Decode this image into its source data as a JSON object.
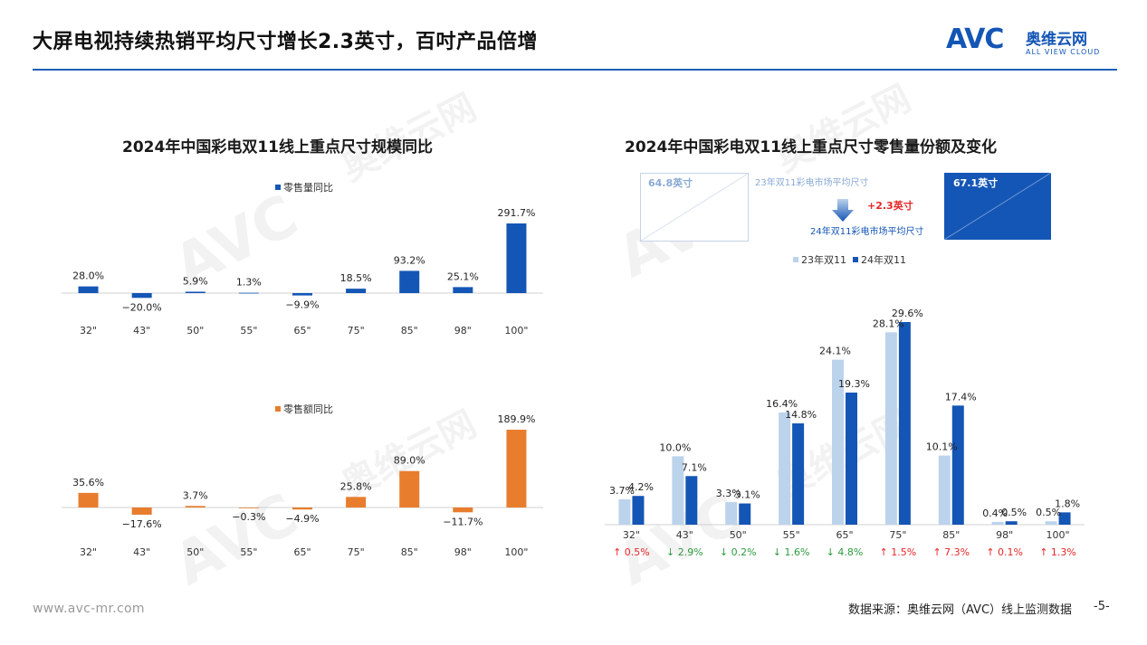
{
  "page": {
    "title": "大屏电视持续热销平均尺寸增长2.3英寸，百吋产品倍增",
    "logo_mark": "AVC",
    "logo_cn": "奥维云网",
    "logo_en": "ALL VIEW CLOUD",
    "footer_url": "www.avc-mr.com",
    "footer_source": "数据来源：奥维云网（AVC）线上监测数据",
    "page_number": "-5-",
    "watermark_cn": "奥维云网",
    "watermark_en": "ALL VIEW CLOUD",
    "watermark_mark": "AVC"
  },
  "colors": {
    "blue": "#1456b5",
    "light_blue": "#bcd3ec",
    "orange": "#e87d2e",
    "up_red": "#e52727",
    "down_green": "#2e9a3e",
    "brand": "#1f5fb8"
  },
  "chart_data": [
    {
      "id": "volume-yoy",
      "type": "bar",
      "title": "2024年中国彩电双11线上重点尺寸规模同比",
      "categories": [
        "32\"",
        "43\"",
        "50\"",
        "55\"",
        "65\"",
        "75\"",
        "85\"",
        "98\"",
        "100\""
      ],
      "series": [
        {
          "name": "零售量同比",
          "values": [
            28.0,
            -20.0,
            5.9,
            1.3,
            -9.9,
            18.5,
            93.2,
            25.1,
            291.7
          ],
          "labels": [
            "28.0%",
            "−20.0%",
            "5.9%",
            "1.3%",
            "−9.9%",
            "18.5%",
            "93.2%",
            "25.1%",
            "291.7%"
          ]
        }
      ],
      "legend_position": "top",
      "grid": false
    },
    {
      "id": "revenue-yoy",
      "type": "bar",
      "title": "",
      "categories": [
        "32\"",
        "43\"",
        "50\"",
        "55\"",
        "65\"",
        "75\"",
        "85\"",
        "98\"",
        "100\""
      ],
      "series": [
        {
          "name": "零售额同比",
          "values": [
            35.6,
            -17.6,
            3.7,
            -0.3,
            -4.9,
            25.8,
            89.0,
            -11.7,
            189.9
          ],
          "labels": [
            "35.6%",
            "−17.6%",
            "3.7%",
            "−0.3%",
            "−4.9%",
            "25.8%",
            "89.0%",
            "−11.7%",
            "189.9%"
          ]
        }
      ],
      "legend_position": "top",
      "grid": false
    },
    {
      "id": "share-change",
      "type": "bar",
      "title": "2024年中国彩电双11线上重点尺寸零售量份额及变化",
      "categories": [
        "32\"",
        "43\"",
        "50\"",
        "55\"",
        "65\"",
        "75\"",
        "85\"",
        "98\"",
        "100\""
      ],
      "series": [
        {
          "name": "23年双11",
          "values": [
            3.7,
            10.0,
            3.3,
            16.4,
            24.1,
            28.1,
            10.1,
            0.4,
            0.5
          ],
          "labels": [
            "3.7%",
            "10.0%",
            "3.3%",
            "16.4%",
            "24.1%",
            "28.1%",
            "10.1%",
            "0.4%",
            "0.5%"
          ]
        },
        {
          "name": "24年双11",
          "values": [
            4.2,
            7.1,
            3.1,
            14.8,
            19.3,
            29.6,
            17.4,
            0.5,
            1.8
          ],
          "labels": [
            "4.2%",
            "7.1%",
            "3.1%",
            "14.8%",
            "19.3%",
            "29.6%",
            "17.4%",
            "0.5%",
            "1.8%"
          ]
        }
      ],
      "changes": [
        {
          "dir": "up",
          "text": "↑ 0.5%"
        },
        {
          "dir": "down",
          "text": "↓ 2.9%"
        },
        {
          "dir": "down",
          "text": "↓ 0.2%"
        },
        {
          "dir": "down",
          "text": "↓ 1.6%"
        },
        {
          "dir": "down",
          "text": "↓ 4.8%"
        },
        {
          "dir": "up",
          "text": "↑ 1.5%"
        },
        {
          "dir": "up",
          "text": "↑ 7.3%"
        },
        {
          "dir": "up",
          "text": "↑ 0.1%"
        },
        {
          "dir": "up",
          "text": "↑ 1.3%"
        }
      ],
      "average_size": {
        "prev_value": "64.8英寸",
        "prev_label": "23年双11彩电市场平均尺寸",
        "curr_value": "67.1英寸",
        "curr_label": "24年双11彩电市场平均尺寸",
        "delta": "+2.3英寸"
      },
      "legend_position": "top-left",
      "grid": false
    }
  ]
}
